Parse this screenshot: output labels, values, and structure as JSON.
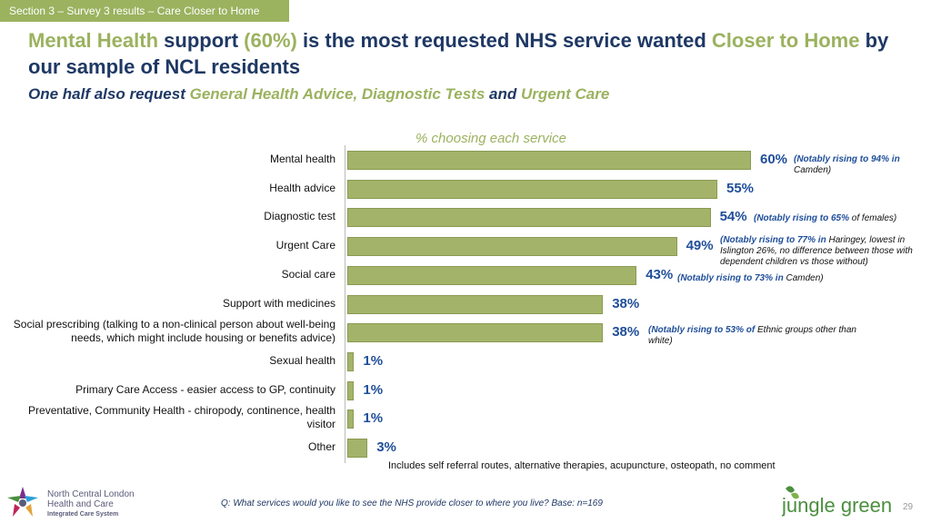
{
  "section_tag": "Section 3 – Survey 3 results – Care Closer to Home",
  "title": {
    "p1": "Mental Health",
    "p2": " support ",
    "p3": "(60%)",
    "p4": " is the most requested NHS service wanted ",
    "p5": "Closer to Home",
    "p6": " by our sample of NCL residents"
  },
  "subtitle": {
    "p1": "One half also request ",
    "p2": "General Health Advice, Diagnostic Tests",
    "p3": " and ",
    "p4": "Urgent Care"
  },
  "chart_data": {
    "type": "bar",
    "orientation": "horizontal",
    "title": "% choosing each service",
    "categories": [
      "Mental health",
      "Health advice",
      "Diagnostic test",
      "Urgent Care",
      "Social care",
      "Support with medicines",
      "Social prescribing (talking to a non-clinical person about well-being needs, which might include housing or benefits advice)",
      "Sexual health",
      "Primary Care Access - easier access to GP, continuity",
      "Preventative, Community Health - chiropody, continence, health visitor",
      "Other"
    ],
    "values": [
      60,
      55,
      54,
      49,
      43,
      38,
      38,
      1,
      1,
      1,
      3
    ],
    "value_labels": [
      "60%",
      "55%",
      "54%",
      "49%",
      "43%",
      "38%",
      "38%",
      "1%",
      "1%",
      "1%",
      "3%"
    ],
    "xlim": [
      0,
      100
    ],
    "annotations": [
      {
        "a": "(Notably rising to 94% in ",
        "b": "Camden)"
      },
      {
        "a": "(Notably rising to 65% ",
        "b": "of females)"
      },
      {
        "a": "(Notably rising to 77% in ",
        "b": "Haringey, lowest in Islington 26%, no difference between those with dependent children vs those without)"
      },
      {
        "a": "(Notably rising to 73% in ",
        "b": "Camden)"
      },
      {
        "a": "(Notably rising to 53% of ",
        "b": "Ethnic groups other than white)"
      }
    ],
    "footnote": "Includes self referral routes, alternative therapies, acupuncture, osteopath, no comment"
  },
  "question": "Q: What services would you like to see the NHS provide closer to where you live? Base: n=169",
  "page_number": "29",
  "logos": {
    "ncl_line1": "North Central London",
    "ncl_line2": "Health and Care",
    "ncl_line3": "Integrated Care System",
    "jungle_green": "jungle green"
  },
  "colors": {
    "bar": "#a3b46a",
    "accent_green": "#9bb25f",
    "navy": "#1f3864",
    "value_blue": "#1f4e99"
  }
}
